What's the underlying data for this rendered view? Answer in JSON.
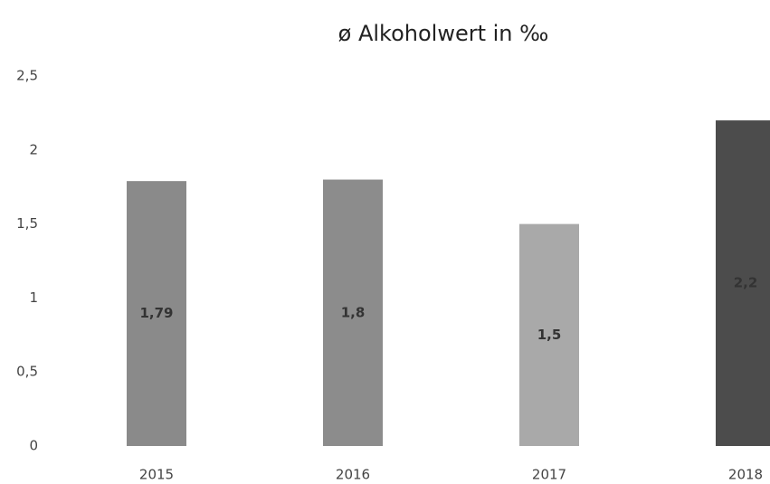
{
  "chart_data": {
    "type": "bar",
    "title": "ø Alkoholwert in ‰",
    "categories": [
      "2015",
      "2016",
      "2017",
      "2018"
    ],
    "values": [
      1.79,
      1.8,
      1.5,
      2.2
    ],
    "value_labels": [
      "1,79",
      "1,8",
      "1,5",
      "2,2"
    ],
    "colors": [
      "#8a8a8a",
      "#8c8c8c",
      "#a9a9a9",
      "#4c4c4c"
    ],
    "ylim": [
      0,
      2.5
    ],
    "yticks": [
      0,
      {
        "value": 0.5,
        "label": "0,5"
      },
      1,
      {
        "value": 1.5,
        "label": "1,5"
      },
      2,
      {
        "value": 2.5,
        "label": "2,5"
      }
    ],
    "grid": false
  }
}
